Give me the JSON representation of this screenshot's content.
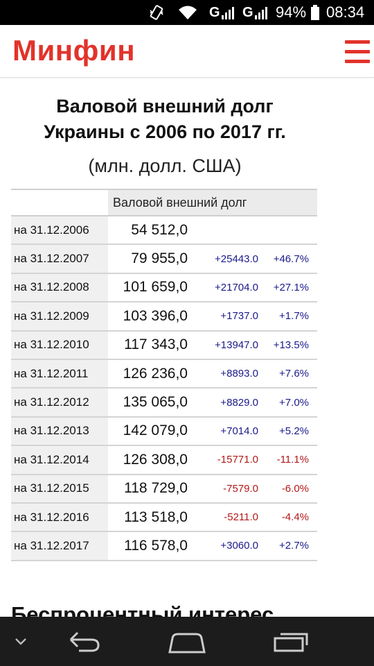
{
  "status_bar": {
    "sim1_label": "G",
    "sim2_label": "G",
    "battery": "94%",
    "time": "08:34",
    "icons": [
      "vibrate-icon",
      "wifi-icon",
      "signal-sim1-icon",
      "signal-sim2-icon",
      "battery-icon"
    ]
  },
  "header": {
    "logo": "Минфин",
    "menu_icon": "hamburger-menu-icon",
    "brand_color": "#e2332a"
  },
  "article": {
    "title_line1": "Валовой внешний долг",
    "title_line2": "Украины с 2006 по 2017 гг.",
    "subtitle": "(млн. долл. США)"
  },
  "table": {
    "column_header": "Валовой внешний долг",
    "rows": [
      {
        "date": "на 31.12.2006",
        "value": "54 512,0",
        "abs": "",
        "pct": "",
        "sign": ""
      },
      {
        "date": "на 31.12.2007",
        "value": "79 955,0",
        "abs": "+25443.0",
        "pct": "+46.7%",
        "sign": "pos"
      },
      {
        "date": "на 31.12.2008",
        "value": "101 659,0",
        "abs": "+21704.0",
        "pct": "+27.1%",
        "sign": "pos"
      },
      {
        "date": "на 31.12.2009",
        "value": "103 396,0",
        "abs": "+1737.0",
        "pct": "+1.7%",
        "sign": "pos"
      },
      {
        "date": "на 31.12.2010",
        "value": "117 343,0",
        "abs": "+13947.0",
        "pct": "+13.5%",
        "sign": "pos"
      },
      {
        "date": "на 31.12.2011",
        "value": "126 236,0",
        "abs": "+8893.0",
        "pct": "+7.6%",
        "sign": "pos"
      },
      {
        "date": "на 31.12.2012",
        "value": "135 065,0",
        "abs": "+8829.0",
        "pct": "+7.0%",
        "sign": "pos"
      },
      {
        "date": "на 31.12.2013",
        "value": "142 079,0",
        "abs": "+7014.0",
        "pct": "+5.2%",
        "sign": "pos"
      },
      {
        "date": "на 31.12.2014",
        "value": "126 308,0",
        "abs": "-15771.0",
        "pct": "-11.1%",
        "sign": "neg"
      },
      {
        "date": "на 31.12.2015",
        "value": "118 729,0",
        "abs": "-7579.0",
        "pct": "-6.0%",
        "sign": "neg"
      },
      {
        "date": "на 31.12.2016",
        "value": "113 518,0",
        "abs": "-5211.0",
        "pct": "-4.4%",
        "sign": "neg"
      },
      {
        "date": "на 31.12.2017",
        "value": "116 578,0",
        "abs": "+3060.0",
        "pct": "+2.7%",
        "sign": "pos"
      }
    ],
    "colors": {
      "positive": "#1a1a8a",
      "negative": "#b21818"
    }
  },
  "next_section": {
    "heading_partial": "Беспроцентный интерес"
  },
  "nav_bar": {
    "icons": [
      "hide-keyboard-chevron-icon",
      "back-icon",
      "home-icon",
      "recent-apps-icon"
    ]
  }
}
